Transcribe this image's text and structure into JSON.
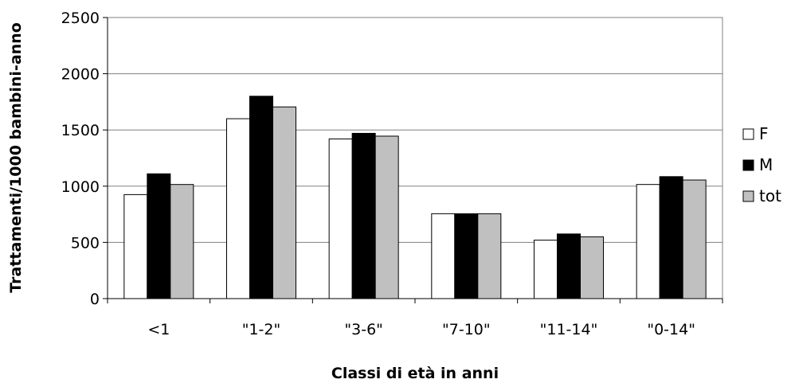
{
  "chart_data": {
    "type": "bar",
    "title": "",
    "xlabel": "Classi di età in anni",
    "ylabel": "Trattamenti/1000 bambini-anno",
    "categories": [
      "<1",
      "\"1-2\"",
      "\"3-6\"",
      "\"7-10\"",
      "\"11-14\"",
      "\"0-14\""
    ],
    "series": [
      {
        "name": "F",
        "color": "#ffffff",
        "values": [
          925,
          1600,
          1420,
          755,
          520,
          1015
        ]
      },
      {
        "name": "M",
        "color": "#000000",
        "values": [
          1110,
          1800,
          1470,
          755,
          575,
          1085
        ]
      },
      {
        "name": "tot",
        "color": "#c0c0c0",
        "values": [
          1015,
          1705,
          1445,
          755,
          550,
          1055
        ]
      }
    ],
    "ylim": [
      0,
      2500
    ],
    "yticks": [
      0,
      500,
      1000,
      1500,
      2000,
      2500
    ],
    "grid": true,
    "legend_position": "right"
  }
}
